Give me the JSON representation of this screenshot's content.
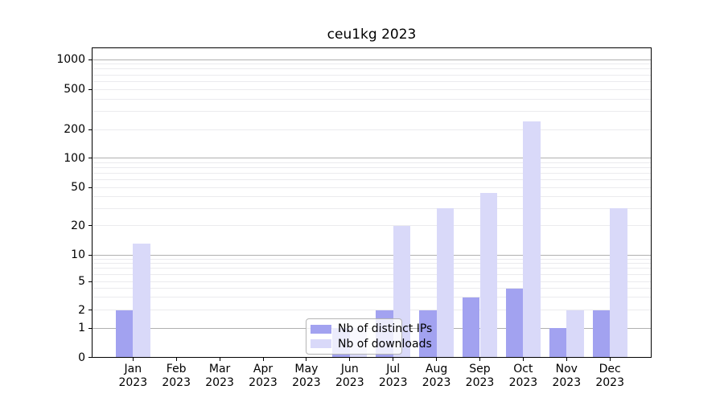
{
  "figure": {
    "title": "ceu1kg 2023"
  },
  "chart_data": {
    "type": "bar",
    "title": "ceu1kg 2023",
    "xlabel": "",
    "ylabel": "",
    "yscale": "symlog",
    "ylim": [
      0,
      1300
    ],
    "grid": true,
    "y_ticks": [
      0,
      1,
      2,
      5,
      10,
      20,
      50,
      100,
      200,
      500,
      1000
    ],
    "categories": [
      "Jan",
      "Feb",
      "Mar",
      "Apr",
      "May",
      "Jun",
      "Jul",
      "Aug",
      "Sep",
      "Oct",
      "Nov",
      "Dec"
    ],
    "category_year": "2023",
    "series": [
      {
        "name": "Nb of distinct IPs",
        "color": "#a2a2f0",
        "values": [
          2,
          0,
          0,
          0,
          0,
          1,
          2,
          2,
          3,
          4,
          1,
          2
        ]
      },
      {
        "name": "Nb of downloads",
        "color": "#d9d9f9",
        "values": [
          13,
          0,
          0,
          0,
          0,
          1,
          20,
          30,
          44,
          240,
          2,
          30
        ]
      }
    ],
    "legend": {
      "position": "inside-bottom-center",
      "entries": [
        "Nb of distinct IPs",
        "Nb of downloads"
      ]
    },
    "colors": {
      "major_grid": "#b0b0b0",
      "minor_grid": "#ebebee",
      "axis": "#000000",
      "background": "#ffffff",
      "text": "#000000"
    }
  }
}
